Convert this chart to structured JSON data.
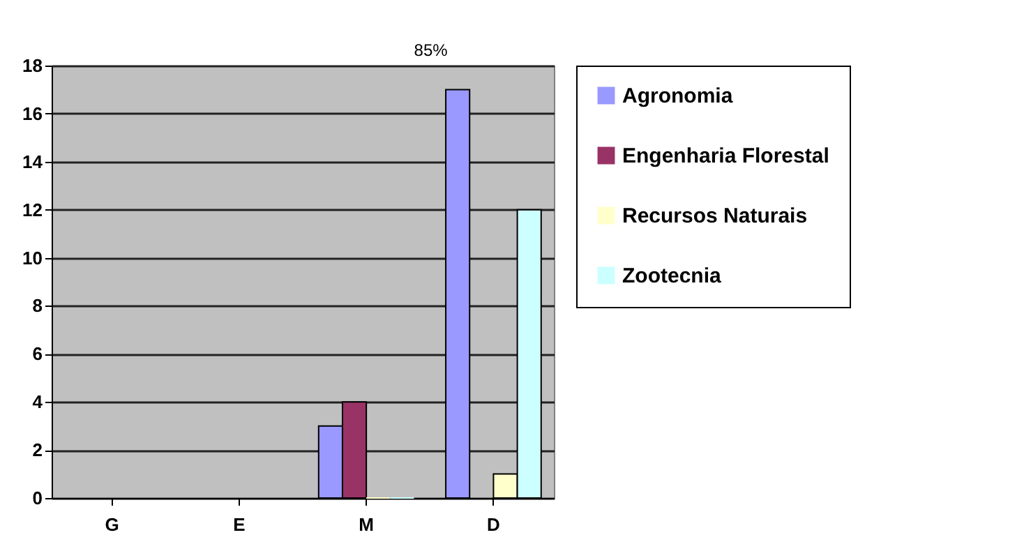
{
  "chart_data": {
    "type": "bar",
    "categories": [
      "G",
      "E",
      "M",
      "D"
    ],
    "series": [
      {
        "name": "Agronomia",
        "color": "#9999ff",
        "values": [
          null,
          null,
          3,
          17
        ]
      },
      {
        "name": "Engenharia Florestal",
        "color": "#993366",
        "values": [
          null,
          null,
          4,
          null
        ]
      },
      {
        "name": "Recursos Naturais",
        "color": "#ffffcc",
        "values": [
          null,
          null,
          0,
          1
        ]
      },
      {
        "name": "Zootecnia",
        "color": "#ccffff",
        "values": [
          null,
          null,
          0,
          12
        ]
      }
    ],
    "ylim": [
      0,
      18
    ],
    "yticks": [
      0,
      2,
      4,
      6,
      8,
      10,
      12,
      14,
      16,
      18
    ],
    "grid": "y",
    "legend": "right",
    "annotations": [
      "85%"
    ]
  }
}
